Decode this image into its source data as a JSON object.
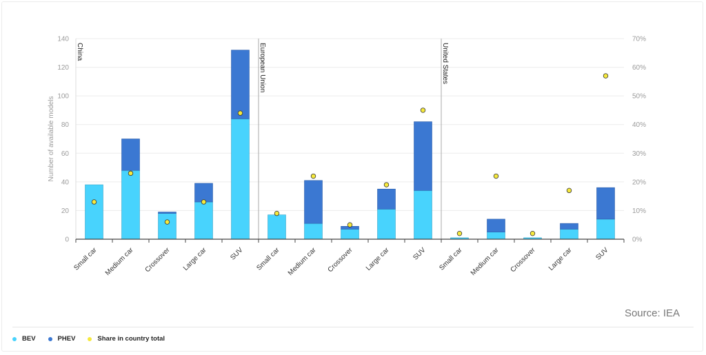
{
  "chart_data": {
    "type": "bar",
    "stacked": true,
    "ylabel": "Number of available models",
    "ylim": [
      0,
      140
    ],
    "yticks": [
      "0",
      "20",
      "40",
      "60",
      "80",
      "100",
      "120",
      "140"
    ],
    "y2lim": [
      0,
      70
    ],
    "y2ticks": [
      "0%",
      "10%",
      "20%",
      "30%",
      "40%",
      "50%",
      "60%",
      "70%"
    ],
    "grid": true,
    "legend_position": "bottom-left",
    "categories": [
      "Small car",
      "Medium car",
      "Crossover",
      "Large car",
      "SUV"
    ],
    "groups": [
      {
        "name": "China",
        "BEV": [
          38,
          48,
          18,
          26,
          84
        ],
        "PHEV": [
          0,
          22,
          1,
          13,
          48
        ],
        "share": [
          13,
          23,
          6,
          13,
          44
        ]
      },
      {
        "name": "European Union",
        "BEV": [
          17,
          11,
          7,
          21,
          34
        ],
        "PHEV": [
          0,
          30,
          2,
          14,
          48
        ],
        "share": [
          9,
          22,
          5,
          19,
          45
        ]
      },
      {
        "name": "United States",
        "BEV": [
          1,
          5,
          1,
          7,
          14
        ],
        "PHEV": [
          0,
          9,
          0,
          4,
          22
        ],
        "share": [
          2,
          22,
          2,
          17,
          57
        ]
      }
    ],
    "series": [
      {
        "name": "BEV",
        "color": "#48d3fd"
      },
      {
        "name": "PHEV",
        "color": "#3b78d2"
      },
      {
        "name": "Share in country total",
        "color": "#f6e93c",
        "axis": "right"
      }
    ]
  },
  "source": "Source: IEA"
}
